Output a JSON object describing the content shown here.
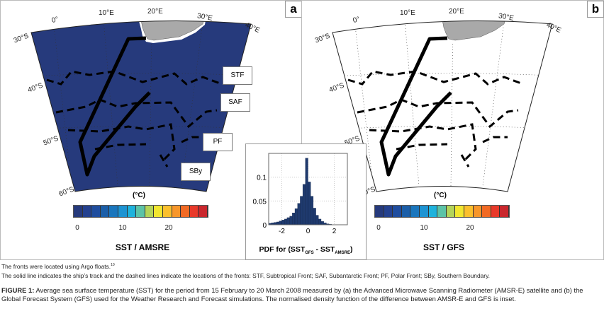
{
  "panels": [
    {
      "label": "a",
      "title": "SST / AMSRE",
      "unit": "(°C)"
    },
    {
      "label": "b",
      "title": "SST / GFS",
      "unit": "(°C)"
    }
  ],
  "map": {
    "lon_labels": [
      "0°",
      "10°E",
      "20°E",
      "30°E",
      "40°E"
    ],
    "lat_labels": [
      "30°S",
      "40°S",
      "50°S",
      "60°S"
    ],
    "fronts": [
      "STF",
      "SAF",
      "PF",
      "SBy"
    ]
  },
  "colorbar": {
    "ticks": [
      "0",
      "10",
      "20"
    ],
    "colors": [
      "#263a7c",
      "#24418f",
      "#1f4d9e",
      "#1b5ea8",
      "#1a76bd",
      "#1d93d2",
      "#1eb2dc",
      "#5cc3a7",
      "#b4d45a",
      "#f2e630",
      "#fbc02d",
      "#f7962a",
      "#f26a24",
      "#e8392a",
      "#c9272d"
    ]
  },
  "inset": {
    "xlabel_prefix": "PDF for (SST",
    "xlabel_sub1": "GFS",
    "xlabel_mid": " - SST",
    "xlabel_sub2": "AMSRE",
    "xlabel_suffix": ")"
  },
  "chart_data": {
    "type": "bar",
    "subtype": "histogram",
    "xlabel": "PDF for (SST_GFS - SST_AMSRE)",
    "xlim": [
      -3,
      3
    ],
    "ylim": [
      0,
      0.15
    ],
    "xticks": [
      "-2",
      "0",
      "2"
    ],
    "yticks": [
      "0",
      "0.05",
      "0.1"
    ],
    "grid": true,
    "bar_color": "#1f3a6e",
    "bin_width": 0.2,
    "bin_centers": [
      -2.9,
      -2.7,
      -2.5,
      -2.3,
      -2.1,
      -1.9,
      -1.7,
      -1.5,
      -1.3,
      -1.1,
      -0.9,
      -0.7,
      -0.5,
      -0.3,
      -0.1,
      0.1,
      0.3,
      0.5,
      0.7,
      0.9,
      1.1,
      1.3,
      1.5,
      1.7,
      1.9
    ],
    "values": [
      0.003,
      0.004,
      0.005,
      0.006,
      0.008,
      0.01,
      0.012,
      0.015,
      0.018,
      0.025,
      0.034,
      0.045,
      0.06,
      0.085,
      0.14,
      0.09,
      0.06,
      0.035,
      0.02,
      0.012,
      0.007,
      0.004,
      0.002,
      0.001,
      0.0005
    ]
  },
  "captions": {
    "note1": "The fronts were located using Argo floats.",
    "note1_ref": "10",
    "note2": "The solid line indicates the ship’s track and the dashed lines indicate the locations of the fronts: STF, Subtropical Front; SAF, Subantarctic Front; PF, Polar Front; SBy, Southern Boundary.",
    "figure_label": "FIGURE 1:",
    "figure_text": " Average sea surface temperature (SST) for the period from 15 February to 20 March 2008 measured by (a) the Advanced Microwave Scanning Radiometer (AMSR-E) satellite and (b) the Global Forecast System (GFS) used for the Weather Research and Forecast simulations. The normalised density function of the difference between AMSR-E and GFS is inset."
  }
}
